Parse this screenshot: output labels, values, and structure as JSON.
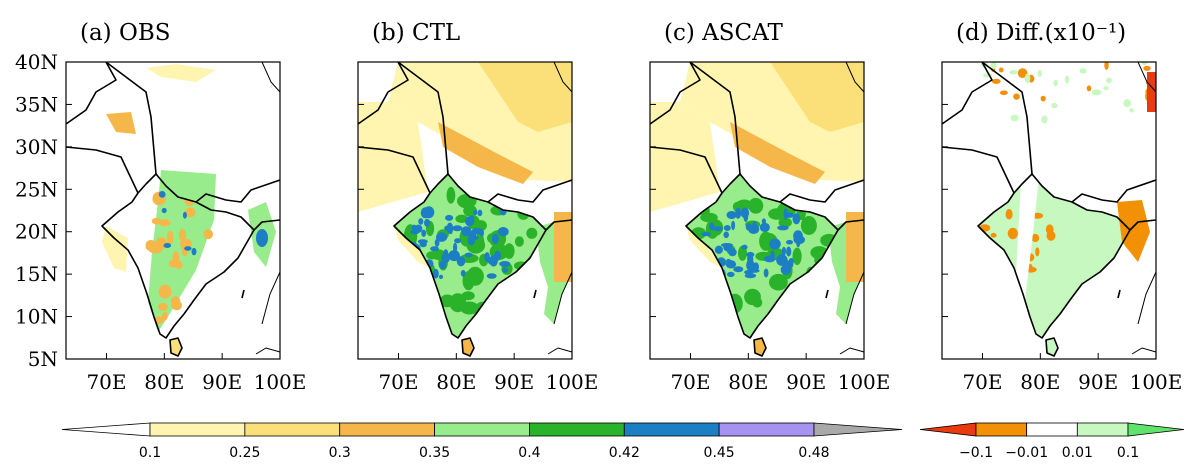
{
  "panels": [
    {
      "id": "a",
      "title": "(a) OBS",
      "style": "obs"
    },
    {
      "id": "b",
      "title": "(b) CTL",
      "style": "model"
    },
    {
      "id": "c",
      "title": "(c) ASCAT",
      "style": "model"
    },
    {
      "id": "d",
      "title": "(d) Diff.(x10⁻¹)",
      "style": "diff"
    }
  ],
  "map_extent": {
    "lon": [
      63,
      100
    ],
    "lat": [
      5,
      40
    ]
  },
  "lat_ticks": [
    "40N",
    "35N",
    "30N",
    "25N",
    "20N",
    "15N",
    "10N",
    "5N"
  ],
  "lon_ticks": [
    "70E",
    "80E",
    "90E",
    "100E"
  ],
  "colorbar_main": {
    "labels": [
      "0.1",
      "0.25",
      "0.3",
      "0.35",
      "0.4",
      "0.42",
      "0.45",
      "0.48"
    ],
    "colors": [
      "#ffffff",
      "#fff5b0",
      "#fbe07a",
      "#f5b74a",
      "#98ec8c",
      "#2ab22a",
      "#1c7fc4",
      "#a693f0",
      "#a9a9a9"
    ]
  },
  "colorbar_diff": {
    "labels": [
      "−0.1",
      "−0.01",
      "0.01",
      "0.1"
    ],
    "colors": [
      "#e93a10",
      "#f29106",
      "#ffffff",
      "#c7f8c0",
      "#5fe36a"
    ]
  }
}
